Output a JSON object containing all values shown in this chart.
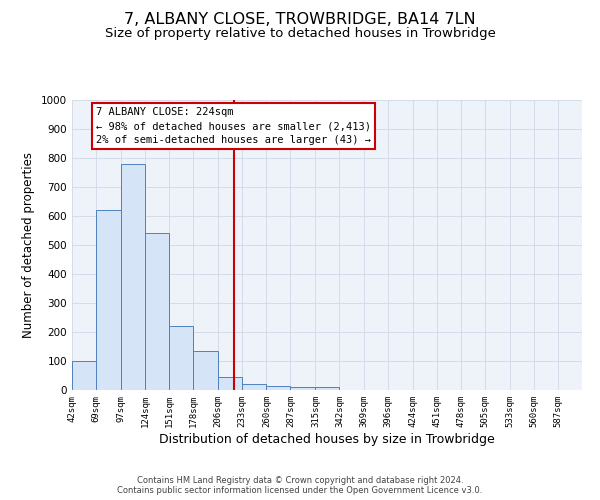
{
  "title": "7, ALBANY CLOSE, TROWBRIDGE, BA14 7LN",
  "subtitle": "Size of property relative to detached houses in Trowbridge",
  "xlabel": "Distribution of detached houses by size in Trowbridge",
  "ylabel": "Number of detached properties",
  "bin_labels": [
    "42sqm",
    "69sqm",
    "97sqm",
    "124sqm",
    "151sqm",
    "178sqm",
    "206sqm",
    "233sqm",
    "260sqm",
    "287sqm",
    "315sqm",
    "342sqm",
    "369sqm",
    "396sqm",
    "424sqm",
    "451sqm",
    "478sqm",
    "505sqm",
    "533sqm",
    "560sqm",
    "587sqm"
  ],
  "bin_edges": [
    42,
    69,
    97,
    124,
    151,
    178,
    206,
    233,
    260,
    287,
    315,
    342,
    369,
    396,
    424,
    451,
    478,
    505,
    533,
    560,
    587,
    614
  ],
  "bar_heights": [
    100,
    620,
    780,
    540,
    220,
    135,
    45,
    20,
    15,
    10,
    10,
    0,
    0,
    0,
    0,
    0,
    0,
    0,
    0,
    0,
    0
  ],
  "bar_facecolor": "#d6e4f7",
  "bar_edgecolor": "#4f81bd",
  "vline_x": 224,
  "vline_color": "#cc0000",
  "ylim": [
    0,
    1000
  ],
  "yticks": [
    0,
    100,
    200,
    300,
    400,
    500,
    600,
    700,
    800,
    900,
    1000
  ],
  "grid_color": "#d0d8e8",
  "bg_color": "#eef3fa",
  "annotation_text": "7 ALBANY CLOSE: 224sqm\n← 98% of detached houses are smaller (2,413)\n2% of semi-detached houses are larger (43) →",
  "annotation_box_edgecolor": "#cc0000",
  "footer_line1": "Contains HM Land Registry data © Crown copyright and database right 2024.",
  "footer_line2": "Contains public sector information licensed under the Open Government Licence v3.0.",
  "title_fontsize": 11.5,
  "subtitle_fontsize": 9.5,
  "xlabel_fontsize": 9,
  "ylabel_fontsize": 8.5,
  "annotation_fontsize": 7.5,
  "footer_fontsize": 6.0
}
